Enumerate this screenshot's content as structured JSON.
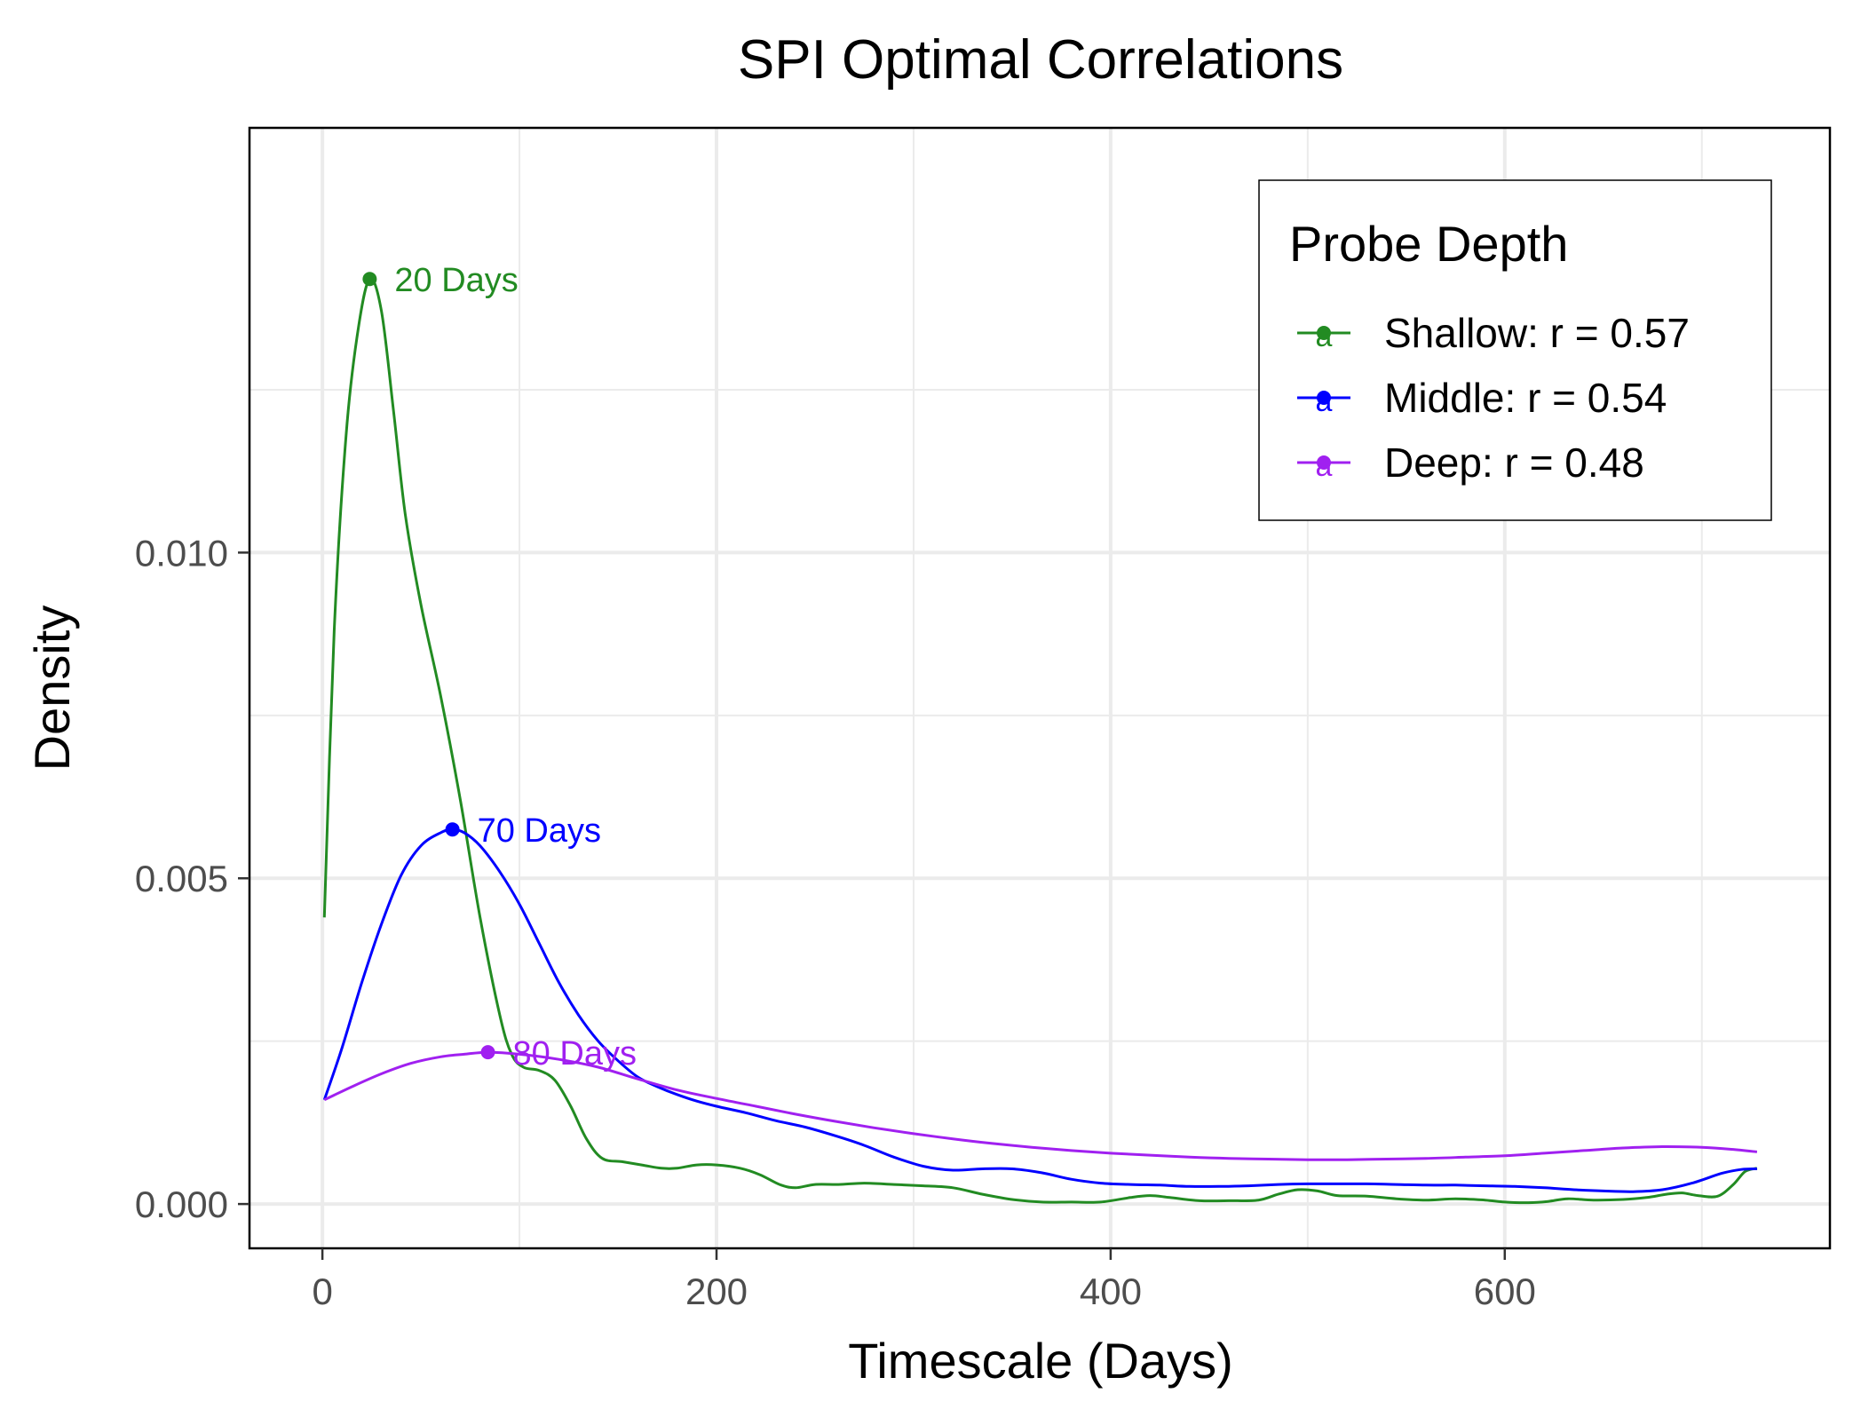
{
  "chart_data": {
    "type": "line",
    "title": "SPI Optimal Correlations",
    "xlabel": "Timescale (Days)",
    "ylabel": "Density",
    "xlim": [
      -37,
      765
    ],
    "ylim": [
      -0.00068,
      0.01652
    ],
    "x_ticks": [
      0,
      200,
      400,
      600
    ],
    "x_tick_labels": [
      "0",
      "200",
      "400",
      "600"
    ],
    "y_ticks": [
      0.0,
      0.005,
      0.01
    ],
    "y_tick_labels": [
      "0.000",
      "0.005",
      "0.010"
    ],
    "x_minor_grid": [
      100,
      300,
      500,
      700
    ],
    "y_minor_grid": [
      0.0025,
      0.0075,
      0.0125
    ],
    "grid": true,
    "legend": {
      "title": "Probe Depth",
      "position": "top-right",
      "entries": [
        "Shallow: r = 0.57",
        "Middle: r = 0.54",
        "Deep: r = 0.48"
      ]
    },
    "series": [
      {
        "name": "Shallow: r = 0.57",
        "color": "#228b22",
        "peak": {
          "x": 24,
          "y": 0.0142,
          "label": "20 Days"
        },
        "points": [
          [
            1,
            0.0044
          ],
          [
            6,
            0.0088
          ],
          [
            12,
            0.0118
          ],
          [
            18,
            0.0134
          ],
          [
            24,
            0.0142
          ],
          [
            30,
            0.0137
          ],
          [
            36,
            0.0122
          ],
          [
            42,
            0.0106
          ],
          [
            50,
            0.0092
          ],
          [
            60,
            0.0078
          ],
          [
            70,
            0.0062
          ],
          [
            80,
            0.0044
          ],
          [
            90,
            0.0029
          ],
          [
            96,
            0.0023
          ],
          [
            102,
            0.0021
          ],
          [
            110,
            0.00205
          ],
          [
            118,
            0.0019
          ],
          [
            126,
            0.0015
          ],
          [
            134,
            0.001
          ],
          [
            142,
            0.0007
          ],
          [
            152,
            0.00065
          ],
          [
            162,
            0.0006
          ],
          [
            172,
            0.00055
          ],
          [
            180,
            0.00055
          ],
          [
            190,
            0.0006
          ],
          [
            200,
            0.0006
          ],
          [
            212,
            0.00055
          ],
          [
            222,
            0.00045
          ],
          [
            232,
            0.0003
          ],
          [
            240,
            0.00025
          ],
          [
            250,
            0.0003
          ],
          [
            262,
            0.0003
          ],
          [
            275,
            0.00032
          ],
          [
            290,
            0.0003
          ],
          [
            305,
            0.00028
          ],
          [
            320,
            0.00025
          ],
          [
            335,
            0.00015
          ],
          [
            350,
            7e-05
          ],
          [
            365,
            3e-05
          ],
          [
            380,
            3e-05
          ],
          [
            395,
            3e-05
          ],
          [
            410,
            0.0001
          ],
          [
            420,
            0.00013
          ],
          [
            430,
            0.0001
          ],
          [
            445,
            5e-05
          ],
          [
            460,
            5e-05
          ],
          [
            475,
            6e-05
          ],
          [
            485,
            0.00015
          ],
          [
            495,
            0.00022
          ],
          [
            505,
            0.0002
          ],
          [
            515,
            0.00013
          ],
          [
            530,
            0.00012
          ],
          [
            545,
            8e-05
          ],
          [
            560,
            6e-05
          ],
          [
            575,
            8e-05
          ],
          [
            590,
            6e-05
          ],
          [
            600,
            3e-05
          ],
          [
            612,
            2e-05
          ],
          [
            622,
            4e-05
          ],
          [
            632,
            8e-05
          ],
          [
            645,
            6e-05
          ],
          [
            660,
            7e-05
          ],
          [
            672,
            0.0001
          ],
          [
            682,
            0.00015
          ],
          [
            690,
            0.00017
          ],
          [
            698,
            0.00013
          ],
          [
            708,
            0.00012
          ],
          [
            716,
            0.0003
          ],
          [
            722,
            0.0005
          ],
          [
            728,
            0.00055
          ]
        ]
      },
      {
        "name": "Middle: r = 0.54",
        "color": "#0000ff",
        "peak": {
          "x": 66,
          "y": 0.00575,
          "label": "70 Days"
        },
        "points": [
          [
            1,
            0.0016
          ],
          [
            10,
            0.0024
          ],
          [
            20,
            0.0034
          ],
          [
            30,
            0.0043
          ],
          [
            40,
            0.00505
          ],
          [
            50,
            0.0055
          ],
          [
            60,
            0.0057
          ],
          [
            66,
            0.00575
          ],
          [
            72,
            0.0057
          ],
          [
            80,
            0.0055
          ],
          [
            90,
            0.0051
          ],
          [
            100,
            0.0046
          ],
          [
            110,
            0.004
          ],
          [
            120,
            0.0034
          ],
          [
            130,
            0.0029
          ],
          [
            140,
            0.0025
          ],
          [
            150,
            0.0022
          ],
          [
            160,
            0.00195
          ],
          [
            170,
            0.0018
          ],
          [
            180,
            0.00168
          ],
          [
            190,
            0.00158
          ],
          [
            200,
            0.0015
          ],
          [
            215,
            0.0014
          ],
          [
            230,
            0.00128
          ],
          [
            245,
            0.00118
          ],
          [
            260,
            0.00105
          ],
          [
            275,
            0.0009
          ],
          [
            290,
            0.00072
          ],
          [
            305,
            0.00058
          ],
          [
            320,
            0.00052
          ],
          [
            335,
            0.00054
          ],
          [
            350,
            0.00054
          ],
          [
            365,
            0.00048
          ],
          [
            380,
            0.00038
          ],
          [
            395,
            0.00032
          ],
          [
            410,
            0.0003
          ],
          [
            425,
            0.00029
          ],
          [
            440,
            0.00027
          ],
          [
            455,
            0.00027
          ],
          [
            470,
            0.00028
          ],
          [
            485,
            0.0003
          ],
          [
            500,
            0.00031
          ],
          [
            515,
            0.00031
          ],
          [
            530,
            0.00031
          ],
          [
            545,
            0.0003
          ],
          [
            560,
            0.00029
          ],
          [
            575,
            0.00029
          ],
          [
            590,
            0.00028
          ],
          [
            605,
            0.00027
          ],
          [
            620,
            0.00025
          ],
          [
            635,
            0.00022
          ],
          [
            650,
            0.0002
          ],
          [
            665,
            0.00019
          ],
          [
            680,
            0.00022
          ],
          [
            695,
            0.00032
          ],
          [
            710,
            0.00047
          ],
          [
            720,
            0.00053
          ],
          [
            728,
            0.00054
          ]
        ]
      },
      {
        "name": "Deep: r = 0.48",
        "color": "#a020f0",
        "peak": {
          "x": 84,
          "y": 0.00233,
          "label": "80 Days"
        },
        "points": [
          [
            1,
            0.0016
          ],
          [
            15,
            0.0018
          ],
          [
            30,
            0.002
          ],
          [
            45,
            0.00216
          ],
          [
            60,
            0.00226
          ],
          [
            72,
            0.0023
          ],
          [
            84,
            0.00233
          ],
          [
            100,
            0.0023
          ],
          [
            120,
            0.00222
          ],
          [
            140,
            0.0021
          ],
          [
            160,
            0.00192
          ],
          [
            180,
            0.00175
          ],
          [
            200,
            0.00162
          ],
          [
            220,
            0.0015
          ],
          [
            240,
            0.00138
          ],
          [
            260,
            0.00127
          ],
          [
            280,
            0.00117
          ],
          [
            300,
            0.00108
          ],
          [
            320,
            0.001
          ],
          [
            340,
            0.00093
          ],
          [
            360,
            0.00087
          ],
          [
            380,
            0.00082
          ],
          [
            400,
            0.00078
          ],
          [
            420,
            0.00075
          ],
          [
            440,
            0.00072
          ],
          [
            460,
            0.0007
          ],
          [
            480,
            0.00069
          ],
          [
            500,
            0.00068
          ],
          [
            520,
            0.00068
          ],
          [
            540,
            0.00069
          ],
          [
            560,
            0.0007
          ],
          [
            580,
            0.00072
          ],
          [
            600,
            0.00074
          ],
          [
            620,
            0.00078
          ],
          [
            640,
            0.00082
          ],
          [
            660,
            0.00086
          ],
          [
            680,
            0.00088
          ],
          [
            700,
            0.00087
          ],
          [
            715,
            0.00084
          ],
          [
            728,
            0.0008
          ]
        ]
      }
    ]
  }
}
